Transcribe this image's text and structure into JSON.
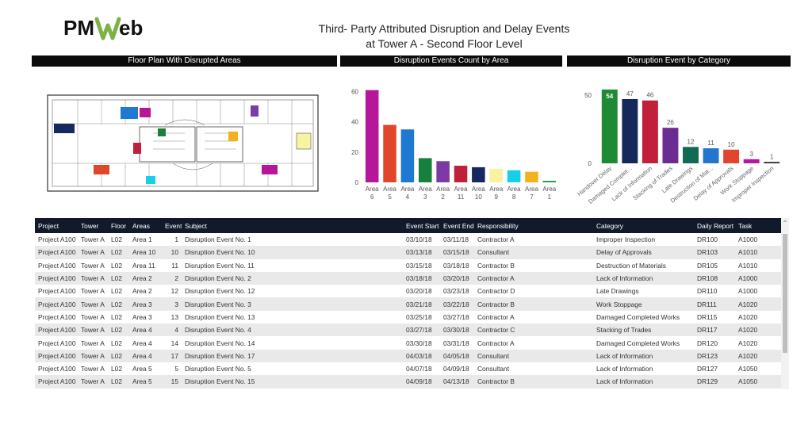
{
  "logo": {
    "text_pm": "PM",
    "text_web": "Web",
    "colors": {
      "pm": "#111111",
      "w": "#7cb342",
      "eb": "#111111"
    }
  },
  "title": {
    "line1": "Third- Party Attributed Disruption and Delay Events",
    "line2": "at Tower A - Second Floor Level"
  },
  "panels": {
    "floor_plan": "Floor Plan With Disrupted Areas",
    "events_by_area": "Disruption Events Count by Area",
    "events_by_category": "Disruption Event by Category"
  },
  "chart_data": [
    {
      "type": "bar",
      "title": "Disruption Events Count by Area",
      "categories": [
        "Area 6",
        "Area 5",
        "Area 4",
        "Area 3",
        "Area 2",
        "Area 11",
        "Area 10",
        "Area 9",
        "Area 8",
        "Area 7",
        "Area 1"
      ],
      "values": [
        61,
        38,
        35,
        16,
        14,
        11,
        10,
        9,
        8,
        7,
        1
      ],
      "colors": [
        "#b5169a",
        "#e0472a",
        "#1e7ad1",
        "#17803d",
        "#7b3aa6",
        "#c0213a",
        "#16295e",
        "#f7f3a0",
        "#17d0e8",
        "#f3b21d",
        "#1f9a4f"
      ],
      "ylim": [
        0,
        65
      ],
      "yticks": [
        0,
        20,
        40,
        60
      ],
      "grid": false
    },
    {
      "type": "bar",
      "title": "Disruption Event by Category",
      "categories": [
        "Handover Delay",
        "Damaged Complet...",
        "Lack of Information",
        "Stacking of Trades",
        "Late Drawings",
        "Destruction of Mat...",
        "Delay of Approvals",
        "Work Stoppage",
        "Improper Inspection"
      ],
      "values": [
        54,
        47,
        46,
        26,
        12,
        11,
        10,
        3,
        1
      ],
      "colors": [
        "#1e8a34",
        "#15285a",
        "#c0203a",
        "#6b2d91",
        "#116a55",
        "#2376cc",
        "#e2452b",
        "#b8179d",
        "#222222"
      ],
      "ylim": [
        0,
        58
      ],
      "yticks": [
        0,
        50
      ],
      "grid": false
    }
  ],
  "table": {
    "columns": [
      "Project",
      "Tower",
      "Floor",
      "Areas",
      "Event",
      "Subject",
      "Event Start",
      "Event End",
      "Responsibility",
      "Category",
      "Daily Report",
      "Task"
    ],
    "rows": [
      [
        "Project A100",
        "Tower A",
        "L02",
        "Area 1",
        "1",
        "Disruption Event No. 1",
        "03/10/18",
        "03/11/18",
        "Contractor A",
        "Improper Inspection",
        "DR100",
        "A1000"
      ],
      [
        "Project A100",
        "Tower A",
        "L02",
        "Area 10",
        "10",
        "Disruption Event No. 10",
        "03/13/18",
        "03/15/18",
        "Consultant",
        "Delay of Approvals",
        "DR103",
        "A1010"
      ],
      [
        "Project A100",
        "Tower A",
        "L02",
        "Area 11",
        "11",
        "Disruption Event No. 11",
        "03/15/18",
        "03/18/18",
        "Contractor B",
        "Destruction of Materials",
        "DR105",
        "A1010"
      ],
      [
        "Project A100",
        "Tower A",
        "L02",
        "Area 2",
        "2",
        "Disruption Event No. 2",
        "03/18/18",
        "03/20/18",
        "Contractor A",
        "Lack of Information",
        "DR108",
        "A1000"
      ],
      [
        "Project A100",
        "Tower A",
        "L02",
        "Area 2",
        "12",
        "Disruption Event No. 12",
        "03/20/18",
        "03/23/18",
        "Contractor D",
        "Late Drawings",
        "DR110",
        "A1000"
      ],
      [
        "Project A100",
        "Tower A",
        "L02",
        "Area 3",
        "3",
        "Disruption Event No. 3",
        "03/21/18",
        "03/22/18",
        "Contractor B",
        "Work Stoppage",
        "DR111",
        "A1020"
      ],
      [
        "Project A100",
        "Tower A",
        "L02",
        "Area 3",
        "13",
        "Disruption Event No. 13",
        "03/25/18",
        "03/27/18",
        "Contractor A",
        "Damaged Completed Works",
        "DR115",
        "A1020"
      ],
      [
        "Project A100",
        "Tower A",
        "L02",
        "Area 4",
        "4",
        "Disruption Event No. 4",
        "03/27/18",
        "03/30/18",
        "Contractor C",
        "Stacking of Trades",
        "DR117",
        "A1020"
      ],
      [
        "Project A100",
        "Tower A",
        "L02",
        "Area 4",
        "14",
        "Disruption Event No. 14",
        "03/30/18",
        "03/31/18",
        "Contractor A",
        "Damaged Completed Works",
        "DR120",
        "A1020"
      ],
      [
        "Project A100",
        "Tower A",
        "L02",
        "Area 4",
        "17",
        "Disruption Event No. 17",
        "04/03/18",
        "04/05/18",
        "Consultant",
        "Lack of Information",
        "DR123",
        "A1020"
      ],
      [
        "Project A100",
        "Tower A",
        "L02",
        "Area 5",
        "5",
        "Disruption Event No. 5",
        "04/07/18",
        "04/09/18",
        "Consultant",
        "Lack of Information",
        "DR127",
        "A1050"
      ],
      [
        "Project A100",
        "Tower A",
        "L02",
        "Area 5",
        "15",
        "Disruption Event No. 15",
        "04/09/18",
        "04/13/18",
        "Contractor B",
        "Lack of Information",
        "DR129",
        "A1050"
      ]
    ]
  }
}
